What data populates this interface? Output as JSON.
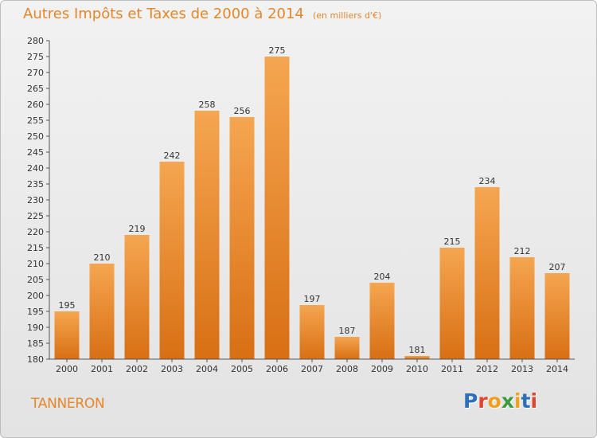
{
  "header": {
    "title": "Autres Impôts et Taxes de 2000 à 2014",
    "unit": "(en milliers d'€)"
  },
  "footer": {
    "commune": "TANNERON",
    "logo": [
      "P",
      "r",
      "o",
      "x",
      "i",
      "t",
      "i"
    ]
  },
  "colors": {
    "title": "#e3862c",
    "bar_top": "#f5a650",
    "bar_bottom": "#d86f14",
    "logo_letters": [
      "#2d6fb8",
      "#e0462f",
      "#f0a020",
      "#3d9a3d",
      "#f0a020",
      "#2d6fb8",
      "#e0462f"
    ]
  },
  "chart_data": {
    "type": "bar",
    "categories": [
      "2000",
      "2001",
      "2002",
      "2003",
      "2004",
      "2005",
      "2006",
      "2007",
      "2008",
      "2009",
      "2010",
      "2011",
      "2012",
      "2013",
      "2014"
    ],
    "values": [
      195,
      210,
      219,
      242,
      258,
      256,
      275,
      197,
      187,
      204,
      181,
      215,
      234,
      212,
      207
    ],
    "ylim": [
      180,
      280
    ],
    "ytick_step": 5,
    "grid": false
  }
}
